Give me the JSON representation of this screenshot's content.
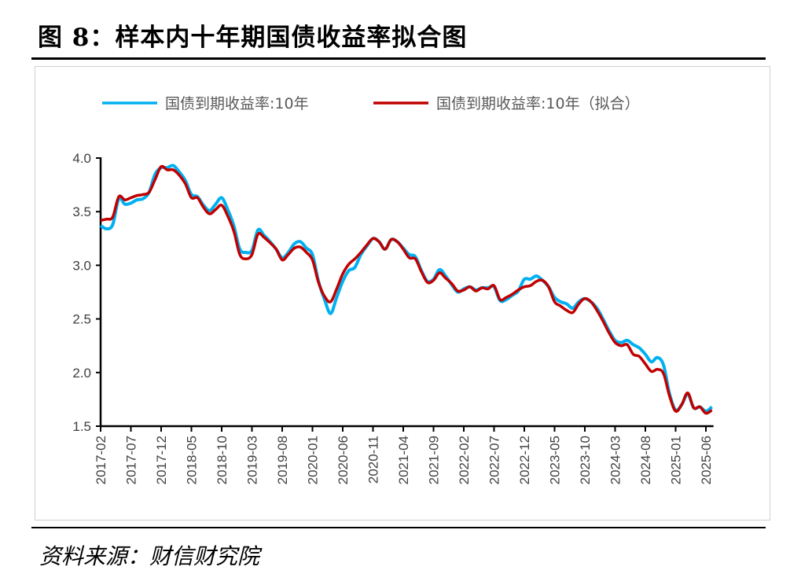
{
  "title": "图 8：样本内十年期国债收益率拟合图",
  "source": "资料来源：财信财究院",
  "chart_data": {
    "type": "line",
    "title": "",
    "xlabel": "",
    "ylabel": "",
    "ylim": [
      1.5,
      4.0
    ],
    "yticks": [
      "1.5",
      "2.0",
      "2.5",
      "3.0",
      "3.5",
      "4.0"
    ],
    "xticks": [
      "2017-02",
      "2017-07",
      "2017-12",
      "2018-05",
      "2018-10",
      "2019-03",
      "2019-08",
      "2020-01",
      "2020-06",
      "2020-11",
      "2021-04",
      "2021-09",
      "2022-02",
      "2022-07",
      "2022-12",
      "2023-05",
      "2023-10",
      "2024-03",
      "2024-08",
      "2025-01",
      "2025-06"
    ],
    "grid": false,
    "legend_position": "top",
    "x_start": "2017-02",
    "x_frequency": "monthly",
    "series": [
      {
        "name": "国债到期收益率:10年",
        "color": "#00B0F0",
        "values": [
          3.37,
          3.34,
          3.38,
          3.62,
          3.57,
          3.58,
          3.61,
          3.62,
          3.68,
          3.85,
          3.91,
          3.91,
          3.93,
          3.87,
          3.79,
          3.66,
          3.64,
          3.56,
          3.51,
          3.57,
          3.63,
          3.52,
          3.37,
          3.15,
          3.12,
          3.14,
          3.33,
          3.28,
          3.22,
          3.15,
          3.07,
          3.12,
          3.2,
          3.22,
          3.16,
          3.1,
          2.85,
          2.68,
          2.55,
          2.7,
          2.85,
          2.95,
          2.98,
          3.1,
          3.18,
          3.25,
          3.22,
          3.15,
          3.24,
          3.22,
          3.16,
          3.1,
          3.08,
          2.95,
          2.85,
          2.87,
          2.96,
          2.9,
          2.82,
          2.75,
          2.78,
          2.8,
          2.77,
          2.79,
          2.79,
          2.8,
          2.67,
          2.68,
          2.72,
          2.76,
          2.87,
          2.87,
          2.9,
          2.86,
          2.8,
          2.7,
          2.66,
          2.64,
          2.6,
          2.66,
          2.69,
          2.66,
          2.6,
          2.5,
          2.39,
          2.3,
          2.28,
          2.3,
          2.26,
          2.23,
          2.17,
          2.1,
          2.14,
          2.07,
          1.8,
          1.65,
          1.7,
          1.8,
          1.67,
          1.68,
          1.64,
          1.68
        ]
      },
      {
        "name": "国债到期收益率:10年（拟合）",
        "color": "#C00000",
        "values": [
          3.42,
          3.43,
          3.45,
          3.64,
          3.61,
          3.63,
          3.65,
          3.66,
          3.68,
          3.8,
          3.92,
          3.89,
          3.89,
          3.84,
          3.76,
          3.63,
          3.63,
          3.54,
          3.48,
          3.52,
          3.56,
          3.46,
          3.32,
          3.1,
          3.06,
          3.1,
          3.29,
          3.26,
          3.21,
          3.15,
          3.05,
          3.1,
          3.16,
          3.17,
          3.12,
          3.05,
          2.84,
          2.71,
          2.66,
          2.78,
          2.92,
          3.01,
          3.06,
          3.12,
          3.19,
          3.25,
          3.22,
          3.15,
          3.24,
          3.22,
          3.15,
          3.07,
          3.06,
          2.94,
          2.84,
          2.86,
          2.93,
          2.88,
          2.83,
          2.76,
          2.77,
          2.8,
          2.76,
          2.79,
          2.78,
          2.81,
          2.68,
          2.7,
          2.73,
          2.77,
          2.8,
          2.81,
          2.85,
          2.86,
          2.8,
          2.66,
          2.62,
          2.58,
          2.56,
          2.64,
          2.69,
          2.66,
          2.58,
          2.48,
          2.37,
          2.28,
          2.25,
          2.26,
          2.17,
          2.15,
          2.08,
          2.01,
          2.03,
          1.99,
          1.78,
          1.64,
          1.7,
          1.81,
          1.67,
          1.68,
          1.62,
          1.65
        ]
      }
    ]
  }
}
